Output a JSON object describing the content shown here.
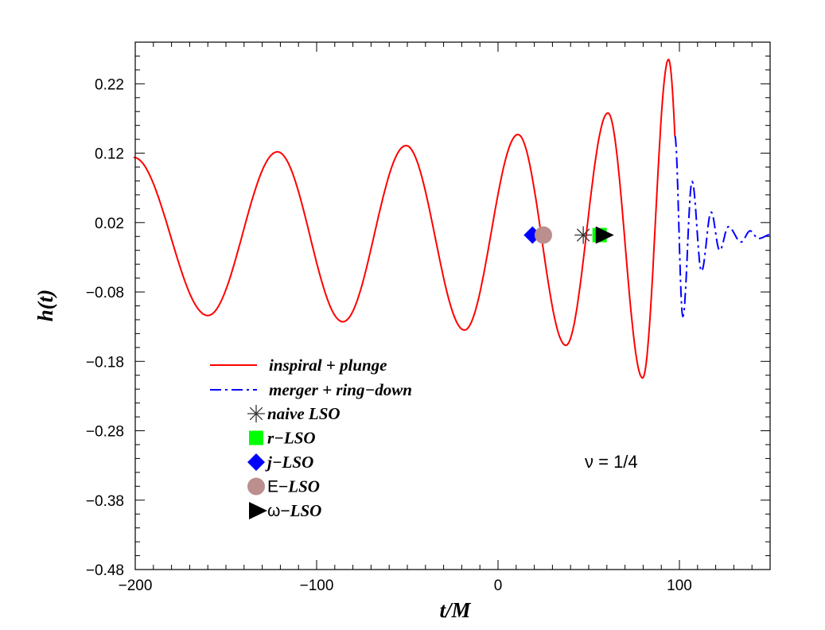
{
  "chart_data": {
    "type": "line",
    "title": "",
    "xlabel": "t/M",
    "ylabel": "h(t)",
    "xlim": [
      -200,
      150
    ],
    "ylim": [
      -0.48,
      0.28
    ],
    "xticks": [
      -200,
      -100,
      0,
      100
    ],
    "xtick_labels": [
      "−200",
      "−100",
      "0",
      "100"
    ],
    "yticks": [
      0.22,
      0.12,
      0.02,
      -0.08,
      -0.18,
      -0.28,
      -0.38,
      -0.48
    ],
    "ytick_labels": [
      "0.22",
      "0.12",
      "0.02",
      "−0.08",
      "−0.18",
      "−0.28",
      "−0.38",
      "−0.48"
    ],
    "grid": false,
    "annotation": "ν = 1/4",
    "legend_position": "lower-left",
    "series": [
      {
        "name": "inspiral + plunge",
        "color": "#ff0000",
        "style": "solid",
        "x": [
          -200.9,
          -160,
          -121.6,
          -85.5,
          -50.7,
          -18.5,
          11,
          37.4,
          60.6,
          79.7,
          94,
          97.5
        ],
        "y": [
          0.114,
          -0.114,
          0.122,
          -0.123,
          0.131,
          -0.135,
          0.147,
          -0.157,
          0.178,
          -0.204,
          0.255,
          0.145
        ]
      },
      {
        "name": "merger + ring−down",
        "color": "#0000ff",
        "style": "dashdot",
        "x": [
          97.5,
          101.9,
          107,
          112.2,
          117.5,
          122.2,
          127,
          134,
          139,
          143.5,
          150.7
        ],
        "y": [
          0.145,
          -0.115,
          0.079,
          -0.05,
          0.035,
          -0.02,
          0.014,
          -0.008,
          0.008,
          -0.003,
          0.003
        ]
      }
    ],
    "markers": [
      {
        "name": "naive LSO",
        "label_plain": "",
        "label_italic": "naive LSO",
        "shape": "asterisk",
        "color": "#000000",
        "x": 47,
        "y": 0.002
      },
      {
        "name": "r−LSO",
        "label_plain": "",
        "label_italic": "r−LSO",
        "shape": "square",
        "color": "#00ff00",
        "x": 56,
        "y": 0.002
      },
      {
        "name": "j−LSO",
        "label_plain": "",
        "label_italic": "j−LSO",
        "shape": "diamond",
        "color": "#0000ff",
        "x": 19,
        "y": 0.002
      },
      {
        "name": "E−LSO",
        "label_plain": "E−",
        "label_italic": "LSO",
        "shape": "circle",
        "color": "#bc8f8f",
        "x": 25,
        "y": 0.002
      },
      {
        "name": "ω−LSO",
        "label_plain": "ω−",
        "label_italic": "LSO",
        "shape": "triangle",
        "color": "#000000",
        "x": 57.8,
        "y": 0.002
      }
    ]
  }
}
